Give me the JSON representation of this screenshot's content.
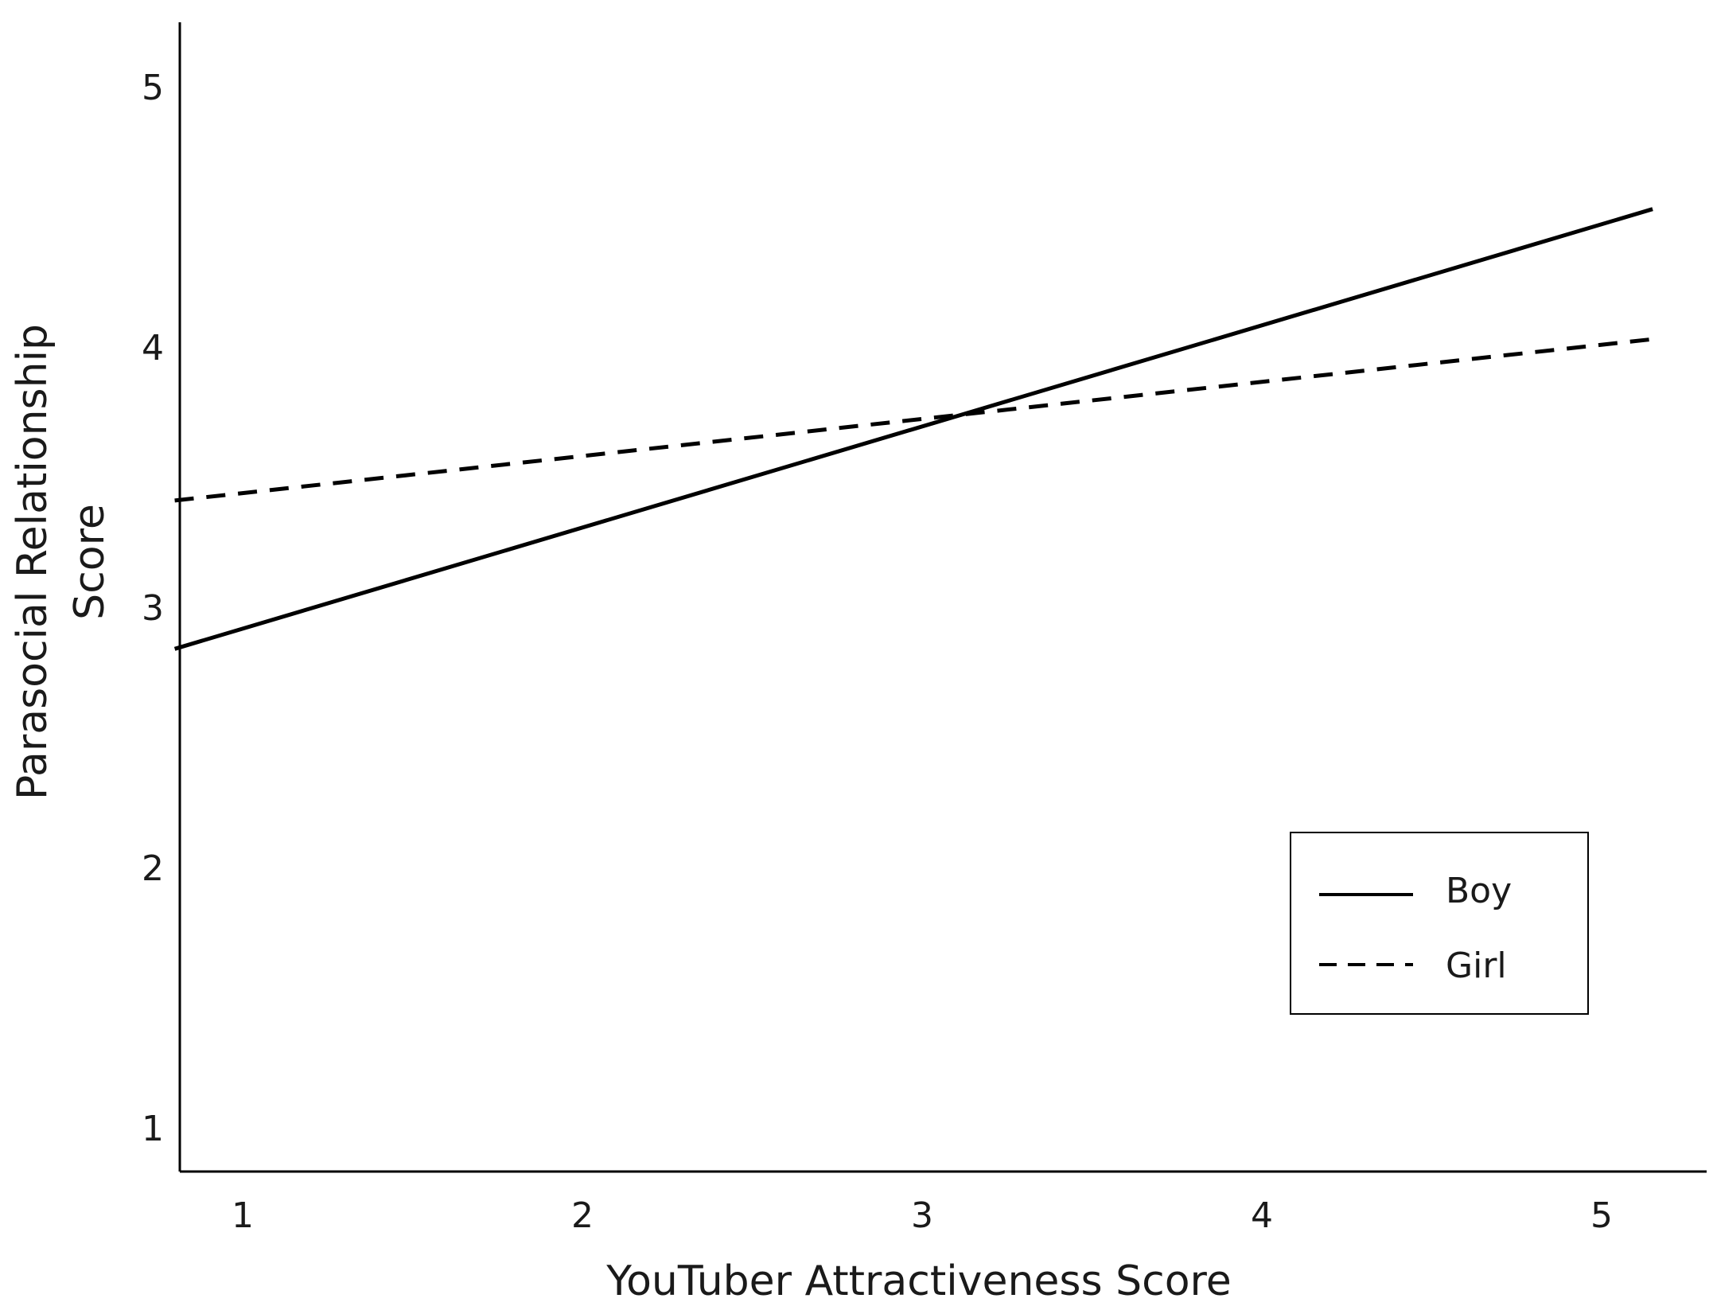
{
  "chart_data": {
    "type": "line",
    "title": "",
    "xlabel": "YouTuber Attractiveness Score",
    "ylabel_lines": [
      "Parasocial Relationship",
      "Score"
    ],
    "x_ticks": [
      "1",
      "2",
      "3",
      "4",
      "5"
    ],
    "y_ticks": [
      "1",
      "2",
      "3",
      "4",
      "5"
    ],
    "xlim": [
      0.8,
      5.2
    ],
    "ylim": [
      0.9,
      5.25
    ],
    "grid": false,
    "legend_position": "bottom-right",
    "series": [
      {
        "name": "Boy",
        "style": "solid",
        "color": "#000000",
        "x": [
          0.8,
          5.15
        ],
        "y": [
          2.84,
          4.53
        ]
      },
      {
        "name": "Girl",
        "style": "dashed",
        "color": "#000000",
        "x": [
          0.8,
          5.15
        ],
        "y": [
          3.41,
          4.03
        ]
      }
    ]
  }
}
